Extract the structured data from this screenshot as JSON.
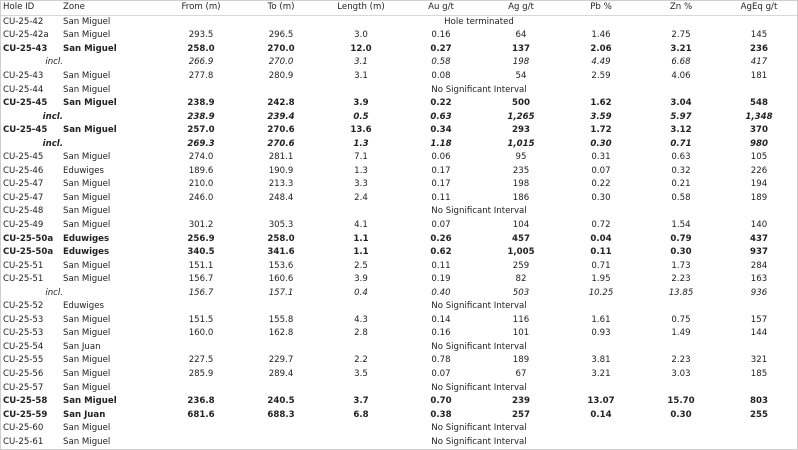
{
  "table": {
    "header": [
      "Hole ID",
      "Zone",
      "From (m)",
      "To (m)",
      "Length (m)",
      "Au g/t",
      "Ag g/t",
      "Pb %",
      "Zn %",
      "AgEq g/t"
    ],
    "rows": [
      {
        "style": "normal",
        "cells": [
          "CU-25-42",
          "San Miguel"
        ],
        "note": "Hole terminated"
      },
      {
        "style": "normal",
        "cells": [
          "CU-25-42a",
          "San Miguel",
          "293.5",
          "296.5",
          "3.0",
          "0.16",
          "64",
          "1.46",
          "2.75",
          "145"
        ]
      },
      {
        "style": "bold",
        "cells": [
          "CU-25-43",
          "San Miguel",
          "258.0",
          "270.0",
          "12.0",
          "0.27",
          "137",
          "2.06",
          "3.21",
          "236"
        ]
      },
      {
        "style": "italic",
        "cells": [
          "incl.",
          null,
          "266.9",
          "270.0",
          "3.1",
          "0.58",
          "198",
          "4.49",
          "6.68",
          "417"
        ]
      },
      {
        "style": "normal",
        "cells": [
          "CU-25-43",
          "San Miguel",
          "277.8",
          "280.9",
          "3.1",
          "0.08",
          "54",
          "2.59",
          "4.06",
          "181"
        ]
      },
      {
        "style": "normal",
        "cells": [
          "CU-25-44",
          "San Miguel"
        ],
        "note": "No Significant Interval"
      },
      {
        "style": "bold",
        "cells": [
          "CU-25-45",
          "San Miguel",
          "238.9",
          "242.8",
          "3.9",
          "0.22",
          "500",
          "1.62",
          "3.04",
          "548"
        ]
      },
      {
        "style": "bold-italic",
        "cells": [
          "incl.",
          null,
          "238.9",
          "239.4",
          "0.5",
          "0.63",
          "1,265",
          "3.59",
          "5.97",
          "1,348"
        ]
      },
      {
        "style": "bold",
        "cells": [
          "CU-25-45",
          "San Miguel",
          "257.0",
          "270.6",
          "13.6",
          "0.34",
          "293",
          "1.72",
          "3.12",
          "370"
        ]
      },
      {
        "style": "bold-italic",
        "cells": [
          "incl.",
          null,
          "269.3",
          "270.6",
          "1.3",
          "1.18",
          "1,015",
          "0.30",
          "0.71",
          "980"
        ]
      },
      {
        "style": "normal",
        "cells": [
          "CU-25-45",
          "San Miguel",
          "274.0",
          "281.1",
          "7.1",
          "0.06",
          "95",
          "0.31",
          "0.63",
          "105"
        ]
      },
      {
        "style": "normal",
        "cells": [
          "CU-25-46",
          "Eduwiges",
          "189.6",
          "190.9",
          "1.3",
          "0.17",
          "235",
          "0.07",
          "0.32",
          "226"
        ]
      },
      {
        "style": "normal",
        "cells": [
          "CU-25-47",
          "San Miguel",
          "210.0",
          "213.3",
          "3.3",
          "0.17",
          "198",
          "0.22",
          "0.21",
          "194"
        ]
      },
      {
        "style": "normal",
        "cells": [
          "CU-25-47",
          "San Miguel",
          "246.0",
          "248.4",
          "2.4",
          "0.11",
          "186",
          "0.30",
          "0.58",
          "189"
        ]
      },
      {
        "style": "normal",
        "cells": [
          "CU-25-48",
          "San Miguel"
        ],
        "note": "No Significant Interval"
      },
      {
        "style": "normal",
        "cells": [
          "CU-25-49",
          "San Miguel",
          "301.2",
          "305.3",
          "4.1",
          "0.07",
          "104",
          "0.72",
          "1.54",
          "140"
        ]
      },
      {
        "style": "bold",
        "cells": [
          "CU-25-50a",
          "Eduwiges",
          "256.9",
          "258.0",
          "1.1",
          "0.26",
          "457",
          "0.04",
          "0.79",
          "437"
        ]
      },
      {
        "style": "bold",
        "cells": [
          "CU-25-50a",
          "Eduwiges",
          "340.5",
          "341.6",
          "1.1",
          "0.62",
          "1,005",
          "0.11",
          "0.30",
          "937"
        ]
      },
      {
        "style": "normal",
        "cells": [
          "CU-25-51",
          "San Miguel",
          "151.1",
          "153.6",
          "2.5",
          "0.11",
          "259",
          "0.71",
          "1.73",
          "284"
        ]
      },
      {
        "style": "normal",
        "cells": [
          "CU-25-51",
          "San Miguel",
          "156.7",
          "160.6",
          "3.9",
          "0.19",
          "82",
          "1.95",
          "2.23",
          "163"
        ]
      },
      {
        "style": "italic",
        "cells": [
          "incl.",
          null,
          "156.7",
          "157.1",
          "0.4",
          "0.40",
          "503",
          "10.25",
          "13.85",
          "936"
        ]
      },
      {
        "style": "normal",
        "cells": [
          "CU-25-52",
          "Eduwiges"
        ],
        "note": "No Significant Interval"
      },
      {
        "style": "normal",
        "cells": [
          "CU-25-53",
          "San Miguel",
          "151.5",
          "155.8",
          "4.3",
          "0.14",
          "116",
          "1.61",
          "0.75",
          "157"
        ]
      },
      {
        "style": "normal",
        "cells": [
          "CU-25-53",
          "San Miguel",
          "160.0",
          "162.8",
          "2.8",
          "0.16",
          "101",
          "0.93",
          "1.49",
          "144"
        ]
      },
      {
        "style": "normal",
        "cells": [
          "CU-25-54",
          "San Juan"
        ],
        "note": "No Significant Interval"
      },
      {
        "style": "normal",
        "cells": [
          "CU-25-55",
          "San Miguel",
          "227.5",
          "229.7",
          "2.2",
          "0.78",
          "189",
          "3.81",
          "2.23",
          "321"
        ]
      },
      {
        "style": "normal",
        "cells": [
          "CU-25-56",
          "San Miguel",
          "285.9",
          "289.4",
          "3.5",
          "0.07",
          "67",
          "3.21",
          "3.03",
          "185"
        ]
      },
      {
        "style": "normal",
        "cells": [
          "CU-25-57",
          "San Miguel"
        ],
        "note": "No Significant Interval"
      },
      {
        "style": "bold",
        "cells": [
          "CU-25-58",
          "San Miguel",
          "236.8",
          "240.5",
          "3.7",
          "0.70",
          "239",
          "13.07",
          "15.70",
          "803"
        ]
      },
      {
        "style": "bold",
        "cells": [
          "CU-25-59",
          "San Juan",
          "681.6",
          "688.3",
          "6.8",
          "0.38",
          "257",
          "0.14",
          "0.30",
          "255"
        ]
      },
      {
        "style": "normal",
        "cells": [
          "CU-25-60",
          "San Miguel"
        ],
        "note": "No Significant Interval"
      },
      {
        "style": "normal",
        "cells": [
          "CU-25-61",
          "San Miguel"
        ],
        "note": "No Significant Interval"
      }
    ]
  }
}
